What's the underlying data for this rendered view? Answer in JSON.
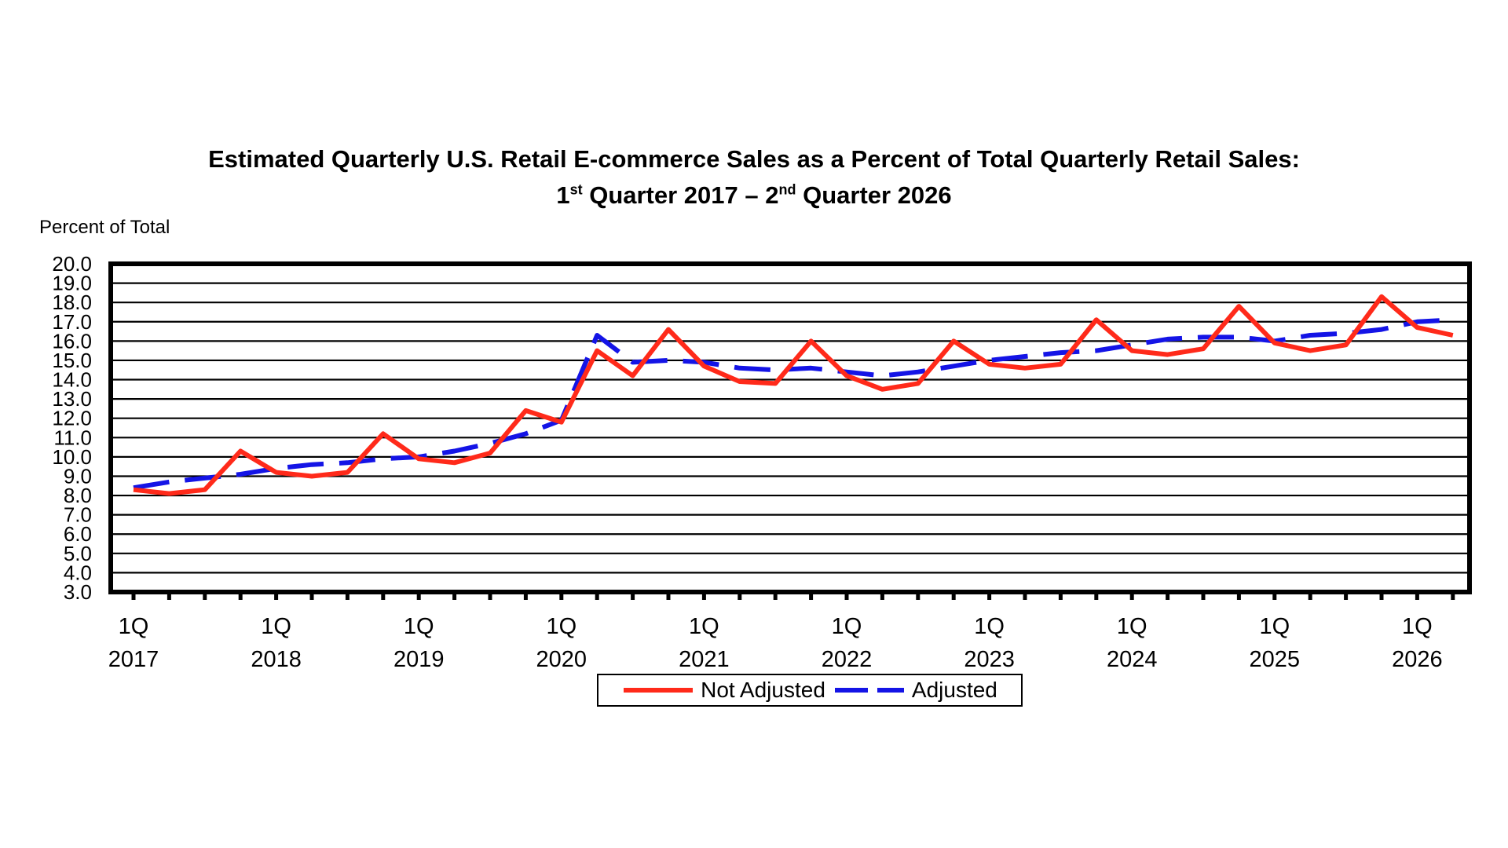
{
  "chart_data": {
    "type": "line",
    "title_line1": "Estimated Quarterly U.S. Retail E-commerce Sales as a Percent of Total Quarterly Retail Sales:",
    "title_line2": {
      "q1_num": "1",
      "q1_sup": "st",
      "mid": " Quarter 2017 – ",
      "q2_num": "2",
      "q2_sup": "nd",
      "end": " Quarter 2026"
    },
    "ylabel": "Percent of Total",
    "ylim": [
      3.0,
      20.0
    ],
    "yticks": [
      "20.0",
      "19.0",
      "18.0",
      "17.0",
      "16.0",
      "15.0",
      "14.0",
      "13.0",
      "12.0",
      "11.0",
      "10.0",
      "9.0",
      "8.0",
      "7.0",
      "6.0",
      "5.0",
      "4.0",
      "3.0"
    ],
    "grid": true,
    "x_quarters": 38,
    "xtick_labels": [
      {
        "q": "1Q",
        "year": "2017",
        "index": 0
      },
      {
        "q": "1Q",
        "year": "2018",
        "index": 4
      },
      {
        "q": "1Q",
        "year": "2019",
        "index": 8
      },
      {
        "q": "1Q",
        "year": "2020",
        "index": 12
      },
      {
        "q": "1Q",
        "year": "2021",
        "index": 16
      },
      {
        "q": "1Q",
        "year": "2022",
        "index": 20
      },
      {
        "q": "1Q",
        "year": "2023",
        "index": 24
      },
      {
        "q": "1Q",
        "year": "2024",
        "index": 28
      },
      {
        "q": "1Q",
        "year": "2025",
        "index": 32
      },
      {
        "q": "1Q",
        "year": "2026",
        "index": 36
      }
    ],
    "series": [
      {
        "name": "Not Adjusted",
        "color": "#ff2a1a",
        "style": "solid",
        "values": [
          8.3,
          8.1,
          8.3,
          10.3,
          9.2,
          9.0,
          9.2,
          11.2,
          9.9,
          9.7,
          10.2,
          12.4,
          11.8,
          15.5,
          14.2,
          16.6,
          14.7,
          13.9,
          13.8,
          16.0,
          14.2,
          13.5,
          13.8,
          16.0,
          14.8,
          14.6,
          14.8,
          17.1,
          15.5,
          15.3,
          15.6,
          17.8,
          15.9,
          15.5,
          15.8,
          18.3,
          16.7,
          16.3
        ]
      },
      {
        "name": "Adjusted",
        "color": "#1414e6",
        "style": "dashed",
        "values": [
          8.4,
          8.7,
          8.9,
          9.1,
          9.4,
          9.6,
          9.7,
          9.9,
          10.0,
          10.3,
          10.7,
          11.2,
          11.9,
          16.3,
          14.9,
          15.0,
          14.9,
          14.6,
          14.5,
          14.6,
          14.4,
          14.2,
          14.4,
          14.7,
          15.0,
          15.2,
          15.4,
          15.5,
          15.8,
          16.1,
          16.2,
          16.2,
          16.0,
          16.3,
          16.4,
          16.6,
          17.0,
          17.1
        ]
      }
    ],
    "legend": {
      "position": "bottom-center",
      "labels": [
        "Not Adjusted",
        "Adjusted"
      ]
    }
  }
}
